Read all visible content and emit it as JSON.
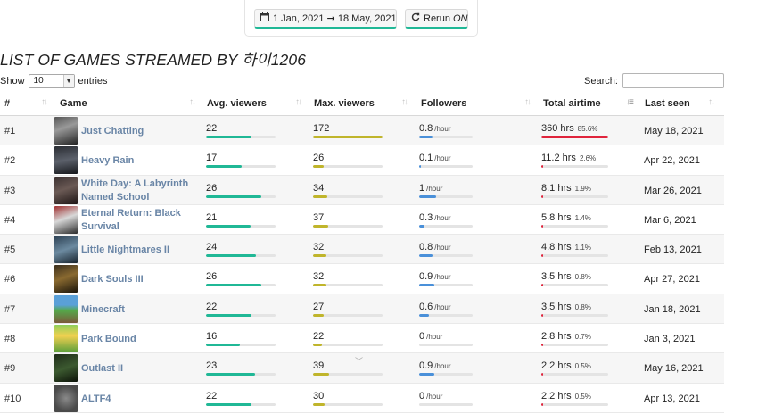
{
  "filters": {
    "date_range": "1 Jan, 2021 ➞ 18 May, 2021",
    "rerun_label": "Rerun",
    "rerun_state": "ON"
  },
  "page": {
    "title": "LIST OF GAMES STREAMED BY 하이1206"
  },
  "length_control": {
    "show_label": "Show",
    "value": "10",
    "entries_label": "entries"
  },
  "search": {
    "label": "Search:",
    "placeholder": ""
  },
  "columns": [
    "#",
    "Game",
    "Avg. viewers",
    "Max. viewers",
    "Followers",
    "Total airtime",
    "Last seen"
  ],
  "colors": {
    "teal": "#20b896",
    "olive": "#c0b52b",
    "blue": "#4a90d9",
    "red": "#e0243c",
    "link": "#6985a6"
  },
  "rows": [
    {
      "rank": "#1",
      "game": "Just Chatting",
      "avg": "22",
      "avg_pct": 0.66,
      "max": "172",
      "max_pct": 1.0,
      "followers": "0.8",
      "fol_unit": "/hour",
      "fol_pct": 0.25,
      "airtime": "360 hrs",
      "airtime_pct": "85.6%",
      "air_frac": 1.0,
      "air_color": "red",
      "last_seen": "May 18, 2021"
    },
    {
      "rank": "#2",
      "game": "Heavy Rain",
      "avg": "17",
      "avg_pct": 0.51,
      "max": "26",
      "max_pct": 0.15,
      "followers": "0.1",
      "fol_unit": "/hour",
      "fol_pct": 0.04,
      "airtime": "11.2 hrs",
      "airtime_pct": "2.6%",
      "air_frac": 0.03,
      "air_color": "red",
      "last_seen": "Apr 22, 2021"
    },
    {
      "rank": "#3",
      "game": "White Day: A Labyrinth Named School",
      "avg": "26",
      "avg_pct": 0.8,
      "max": "34",
      "max_pct": 0.2,
      "followers": "1",
      "fol_unit": "/hour",
      "fol_pct": 0.32,
      "airtime": "8.1 hrs",
      "airtime_pct": "1.9%",
      "air_frac": 0.02,
      "air_color": "red",
      "last_seen": "Mar 26, 2021"
    },
    {
      "rank": "#4",
      "game": "Eternal Return: Black Survival",
      "avg": "21",
      "avg_pct": 0.64,
      "max": "37",
      "max_pct": 0.22,
      "followers": "0.3",
      "fol_unit": "/hour",
      "fol_pct": 0.1,
      "airtime": "5.8 hrs",
      "airtime_pct": "1.4%",
      "air_frac": 0.0,
      "air_color": "red",
      "last_seen": "Mar 6, 2021"
    },
    {
      "rank": "#5",
      "game": "Little Nightmares II",
      "avg": "24",
      "avg_pct": 0.72,
      "max": "32",
      "max_pct": 0.19,
      "followers": "0.8",
      "fol_unit": "/hour",
      "fol_pct": 0.25,
      "airtime": "4.8 hrs",
      "airtime_pct": "1.1%",
      "air_frac": 0.0,
      "air_color": "red",
      "last_seen": "Feb 13, 2021"
    },
    {
      "rank": "#6",
      "game": "Dark Souls III",
      "avg": "26",
      "avg_pct": 0.8,
      "max": "32",
      "max_pct": 0.19,
      "followers": "0.9",
      "fol_unit": "/hour",
      "fol_pct": 0.28,
      "airtime": "3.5 hrs",
      "airtime_pct": "0.8%",
      "air_frac": 0.0,
      "air_color": "red",
      "last_seen": "Apr 27, 2021"
    },
    {
      "rank": "#7",
      "game": "Minecraft",
      "avg": "22",
      "avg_pct": 0.66,
      "max": "27",
      "max_pct": 0.16,
      "followers": "0.6",
      "fol_unit": "/hour",
      "fol_pct": 0.19,
      "airtime": "3.5 hrs",
      "airtime_pct": "0.8%",
      "air_frac": 0.0,
      "air_color": "red",
      "last_seen": "Jan 18, 2021"
    },
    {
      "rank": "#8",
      "game": "Park Bound",
      "avg": "16",
      "avg_pct": 0.49,
      "max": "22",
      "max_pct": 0.13,
      "followers": "0",
      "fol_unit": "/hour",
      "fol_pct": 0.0,
      "airtime": "2.8 hrs",
      "airtime_pct": "0.7%",
      "air_frac": 0.0,
      "air_color": "red",
      "last_seen": "Jan 3, 2021"
    },
    {
      "rank": "#9",
      "game": "Outlast II",
      "avg": "23",
      "avg_pct": 0.7,
      "max": "39",
      "max_pct": 0.23,
      "followers": "0.9",
      "fol_unit": "/hour",
      "fol_pct": 0.28,
      "airtime": "2.2 hrs",
      "airtime_pct": "0.5%",
      "air_frac": 0.0,
      "air_color": "red",
      "last_seen": "May 16, 2021"
    },
    {
      "rank": "#10",
      "game": "ALTF4",
      "avg": "22",
      "avg_pct": 0.66,
      "max": "30",
      "max_pct": 0.17,
      "followers": "0",
      "fol_unit": "/hour",
      "fol_pct": 0.0,
      "airtime": "2.2 hrs",
      "airtime_pct": "0.5%",
      "air_frac": 0.0,
      "air_color": "red",
      "last_seen": "Apr 13, 2021"
    }
  ]
}
